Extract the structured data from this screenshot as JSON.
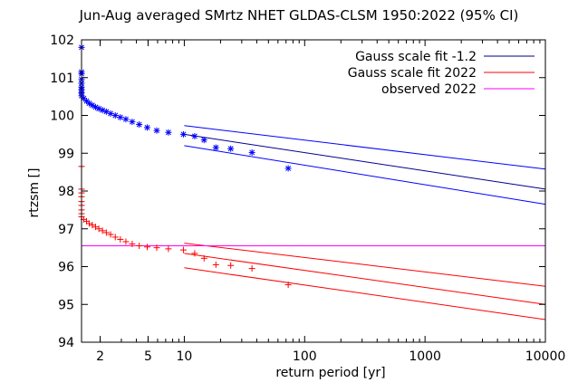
{
  "chart_data": {
    "type": "scatter",
    "title": "Jun-Aug averaged  SMrtz NHET GLDAS-CLSM 1950:2022 (95% CI)",
    "xlabel": "return period [yr]",
    "ylabel": "rtzsm []",
    "xscale": "log",
    "xlim": [
      1.4,
      10000
    ],
    "ylim": [
      94,
      102
    ],
    "xticks": [
      2,
      5,
      10,
      100,
      1000,
      10000
    ],
    "xtick_labels": [
      "2",
      "5",
      "10",
      "100",
      "1000",
      "10000"
    ],
    "yticks": [
      94,
      95,
      96,
      97,
      98,
      99,
      100,
      101,
      102
    ],
    "ytick_labels": [
      "94",
      "95",
      "96",
      "97",
      "98",
      "99",
      "100",
      "101",
      "102"
    ],
    "grid": false,
    "legend_position": "top-right",
    "colors": {
      "blue": "#0000ff",
      "darkblue": "#00008b",
      "red": "#ff0000",
      "magenta": "#ff00ff"
    },
    "lines": [
      {
        "legend": "Gauss scale fit -1.2",
        "color": "#00008b",
        "x": [
          10,
          10000
        ],
        "y": [
          99.5,
          98.05
        ]
      },
      {
        "color": "#0000ff",
        "x": [
          10,
          10000
        ],
        "y": [
          99.73,
          98.58
        ]
      },
      {
        "color": "#0000ff",
        "x": [
          10,
          10000
        ],
        "y": [
          99.2,
          97.65
        ]
      },
      {
        "legend": "Gauss scale fit 2022",
        "color": "#ff0000",
        "x": [
          10,
          10000
        ],
        "y": [
          96.35,
          95.0
        ]
      },
      {
        "color": "#ff0000",
        "x": [
          10,
          10000
        ],
        "y": [
          96.62,
          95.48
        ]
      },
      {
        "color": "#ff0000",
        "x": [
          10,
          10000
        ],
        "y": [
          95.97,
          94.6
        ]
      },
      {
        "legend": "observed 2022",
        "color": "#ff00ff",
        "x": [
          1.4,
          10000
        ],
        "y": [
          96.55,
          96.55
        ]
      }
    ],
    "points": [
      {
        "marker": "star",
        "color": "#0000ff",
        "x": [
          1.01,
          1.05,
          1.09,
          1.13,
          1.17,
          1.22,
          1.27,
          1.33,
          1.39,
          1.46,
          1.54,
          1.62,
          1.72,
          1.83,
          1.95,
          2.09,
          2.25,
          2.44,
          2.67,
          2.94,
          3.27,
          3.69,
          4.22,
          4.92,
          5.9,
          7.38,
          9.83,
          12.2,
          14.6,
          18.3,
          24.3,
          36.5,
          73
        ],
        "y": [
          101.8,
          101.15,
          101.1,
          100.95,
          100.85,
          100.75,
          100.68,
          100.6,
          100.52,
          100.45,
          100.38,
          100.32,
          100.27,
          100.22,
          100.18,
          100.14,
          100.1,
          100.05,
          100.0,
          99.95,
          99.9,
          99.83,
          99.76,
          99.68,
          99.6,
          99.55,
          99.5,
          99.45,
          99.35,
          99.15,
          99.12,
          99.02,
          98.6
        ]
      },
      {
        "marker": "plus",
        "color": "#ff0000",
        "x": [
          1.01,
          1.05,
          1.09,
          1.13,
          1.17,
          1.22,
          1.27,
          1.33,
          1.39,
          1.46,
          1.54,
          1.62,
          1.72,
          1.83,
          1.95,
          2.09,
          2.25,
          2.44,
          2.67,
          2.94,
          3.27,
          3.69,
          4.22,
          4.92,
          5.9,
          7.38,
          9.83,
          12.2,
          14.6,
          18.3,
          24.3,
          36.5,
          73
        ],
        "y": [
          98.65,
          98.05,
          97.95,
          97.85,
          97.72,
          97.62,
          97.5,
          97.4,
          97.32,
          97.25,
          97.2,
          97.14,
          97.1,
          97.05,
          97.0,
          96.95,
          96.9,
          96.85,
          96.78,
          96.72,
          96.66,
          96.6,
          96.55,
          96.52,
          96.5,
          96.47,
          96.44,
          96.35,
          96.22,
          96.05,
          96.03,
          95.95,
          95.52
        ]
      }
    ]
  }
}
